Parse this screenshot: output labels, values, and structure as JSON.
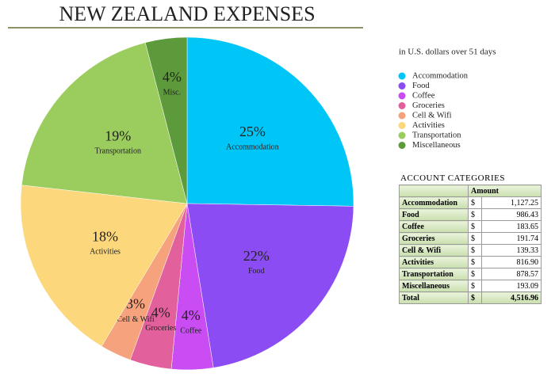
{
  "chart_data": {
    "type": "pie",
    "title": "NEW ZEALAND EXPENSES",
    "subtitle": "in U.S. dollars over 51 days",
    "categories": [
      "Accommodation",
      "Food",
      "Coffee",
      "Groceries",
      "Cell & Wifi",
      "Activities",
      "Transportation",
      "Miscellaneous"
    ],
    "slice_labels": [
      "Accommodation",
      "Food",
      "Coffee",
      "Groceries",
      "Cell & Wifi",
      "Activities",
      "Transportation",
      "Misc."
    ],
    "values": [
      25,
      22,
      4,
      4,
      3,
      18,
      19,
      4
    ],
    "value_labels": [
      "25%",
      "22%",
      "4%",
      "4%",
      "3%",
      "18%",
      "19%",
      "4%"
    ],
    "colors": [
      "#00c5f7",
      "#8b4cf3",
      "#c94df2",
      "#e2619c",
      "#f6a27c",
      "#fcd77c",
      "#9bcc5e",
      "#5c9a3c"
    ],
    "legend": "right"
  },
  "table": {
    "title": "ACCOUNT CATEGORIES",
    "header": "Amount",
    "rows": [
      [
        "Accommodation",
        "$",
        "1,127.25"
      ],
      [
        "Food",
        "$",
        "986.43"
      ],
      [
        "Coffee",
        "$",
        "183.65"
      ],
      [
        "Groceries",
        "$",
        "191.74"
      ],
      [
        "Cell & Wifi",
        "$",
        "139.33"
      ],
      [
        "Activities",
        "$",
        "816.90"
      ],
      [
        "Transportation",
        "$",
        "878.57"
      ],
      [
        "Miscellaneous",
        "$",
        "193.09"
      ],
      [
        "Total",
        "$",
        "4,516.96"
      ]
    ]
  }
}
